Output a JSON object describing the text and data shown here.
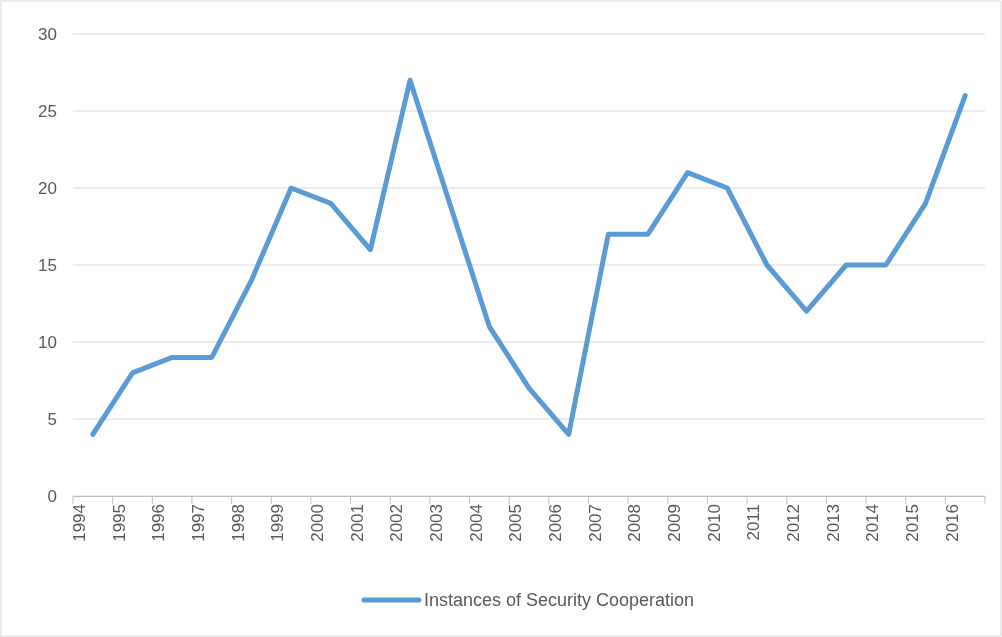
{
  "chart_data": {
    "type": "line",
    "categories": [
      "1994",
      "1995",
      "1996",
      "1997",
      "1998",
      "1999",
      "2000",
      "2001",
      "2002",
      "2003",
      "2004",
      "2005",
      "2006",
      "2007",
      "2008",
      "2009",
      "2010",
      "2011",
      "2012",
      "2013",
      "2014",
      "2015",
      "2016"
    ],
    "series": [
      {
        "name": "Instances of Security Cooperation",
        "color": "#5b9bd5",
        "values": [
          4,
          8,
          9,
          9,
          14,
          20,
          19,
          16,
          27,
          19,
          11,
          7,
          4,
          17,
          17,
          21,
          20,
          15,
          12,
          15,
          15,
          19,
          26
        ]
      }
    ],
    "ylim": [
      0,
      30
    ],
    "yticks": [
      0,
      5,
      10,
      15,
      20,
      25,
      30
    ],
    "grid": "y",
    "legend": "bottom",
    "marker": "none",
    "line_style": "solid"
  }
}
